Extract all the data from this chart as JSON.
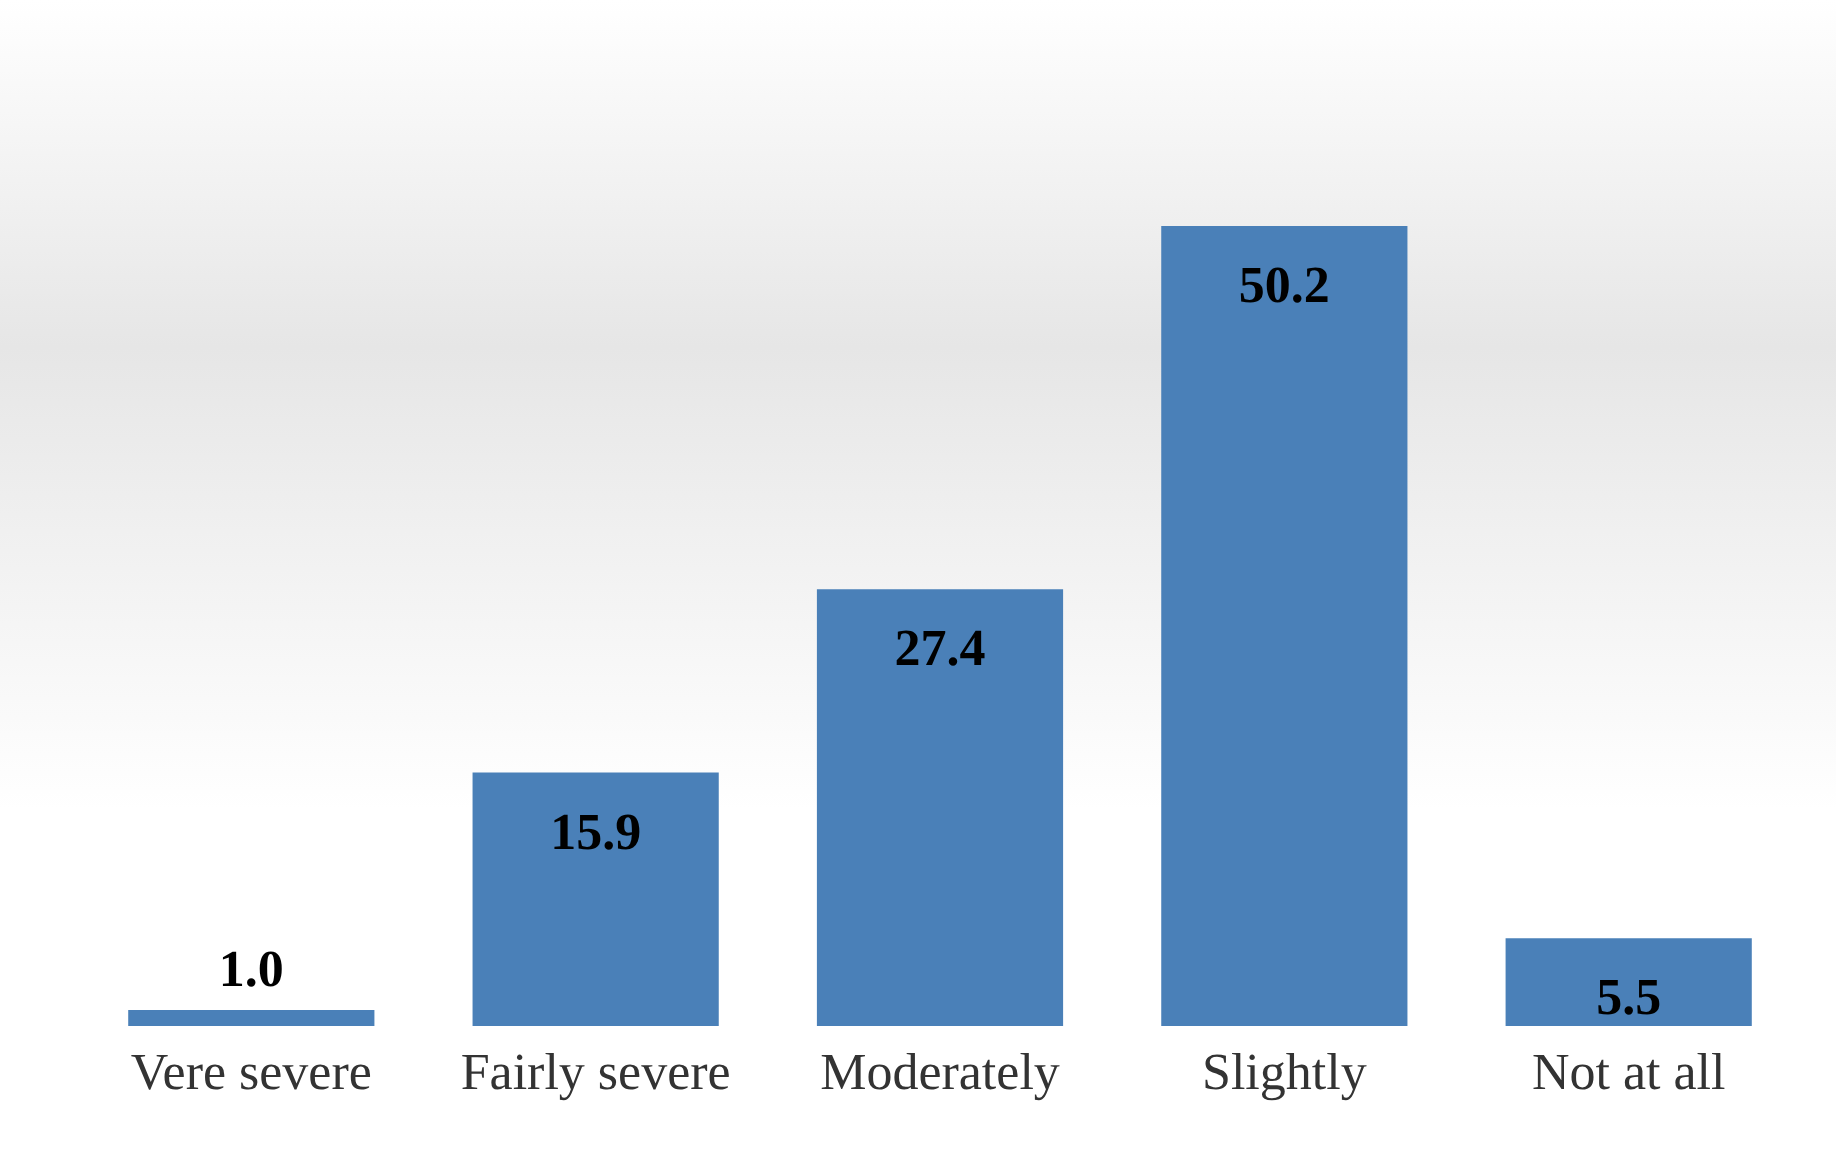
{
  "chart_data": {
    "type": "bar",
    "categories": [
      "Vere severe",
      "Fairly severe",
      "Moderately",
      "Slightly",
      "Not at all"
    ],
    "values": [
      1.0,
      15.9,
      27.4,
      50.2,
      5.5
    ],
    "value_labels": [
      "1.0",
      "15.9",
      "27.4",
      "50.2",
      "5.5"
    ],
    "color": "#4a80b8",
    "tick_labels": "x",
    "grid": false
  }
}
